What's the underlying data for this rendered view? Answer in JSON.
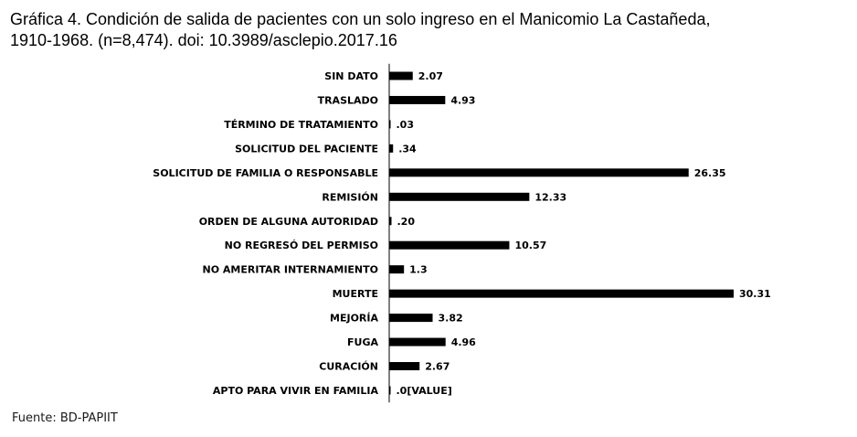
{
  "title": {
    "line1": "Gráfica 4. Condición de salida de pacientes con un solo ingreso en el Manicomio La Castañeda,",
    "line2": "1910-1968. (n=8,474). doi: 10.3989/asclepio.2017.16"
  },
  "source": "Fuente: BD-PAPIIT",
  "colors": {
    "bar": "#000000",
    "text": "#000000"
  },
  "chart_data": {
    "type": "bar",
    "orientation": "horizontal",
    "title": "Gráfica 4. Condición de salida de pacientes con un solo ingreso en el Manicomio La Castañeda, 1910-1968. (n=8,474). doi: 10.3989/asclepio.2017.16",
    "xlabel": "",
    "ylabel": "",
    "grid": false,
    "legend": "none",
    "xlim": [
      0,
      30.31
    ],
    "categories": [
      "SIN DATO",
      "TRASLADO",
      "TÉRMINO DE TRATAMIENTO",
      "SOLICITUD DEL PACIENTE",
      "SOLICITUD DE FAMILIA O RESPONSABLE",
      "REMISIÓN",
      "ORDEN DE ALGUNA AUTORIDAD",
      "NO REGRESÓ DEL PERMISO",
      "NO AMERITAR INTERNAMIENTO",
      "MUERTE",
      "MEJORÍA",
      "FUGA",
      "CURACIÓN",
      "APTO PARA VIVIR EN FAMILIA"
    ],
    "values": [
      2.07,
      4.93,
      0.03,
      0.34,
      26.35,
      12.33,
      0.2,
      10.57,
      1.3,
      30.31,
      3.82,
      4.96,
      2.67,
      0.0
    ],
    "data_labels": [
      "2.07",
      "4.93",
      ".03",
      ".34",
      "26.35",
      "12.33",
      ".20",
      "10.57",
      "1.3",
      "30.31",
      "3.82",
      "4.96",
      "2.67",
      ".0[VALUE]"
    ]
  }
}
